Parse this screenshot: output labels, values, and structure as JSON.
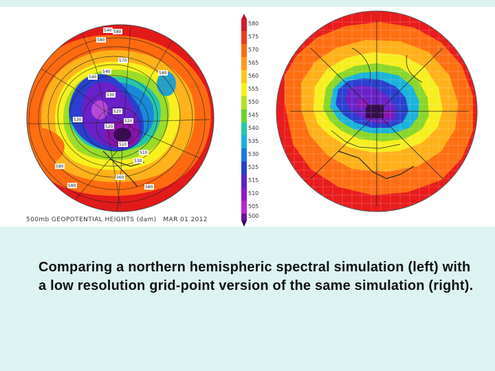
{
  "figure": {
    "left_map_caption": "500mb GEOPOTENTIAL HEIGHTS (dam)   MAR 01 2012",
    "colorbar_labels": [
      "580",
      "575",
      "570",
      "565",
      "560",
      "555",
      "550",
      "545",
      "540",
      "535",
      "530",
      "525",
      "515",
      "510",
      "505",
      "500"
    ],
    "contour_labels": [
      "580",
      "580",
      "580",
      "580",
      "580",
      "570",
      "540",
      "540",
      "530",
      "520",
      "520",
      "510",
      "530",
      "520",
      "510",
      "540",
      "530",
      "560",
      "540"
    ]
  },
  "caption": "Comparing a northern hemispheric spectral simulation (left) with a low resolution grid-point version of the same simulation (right)."
}
